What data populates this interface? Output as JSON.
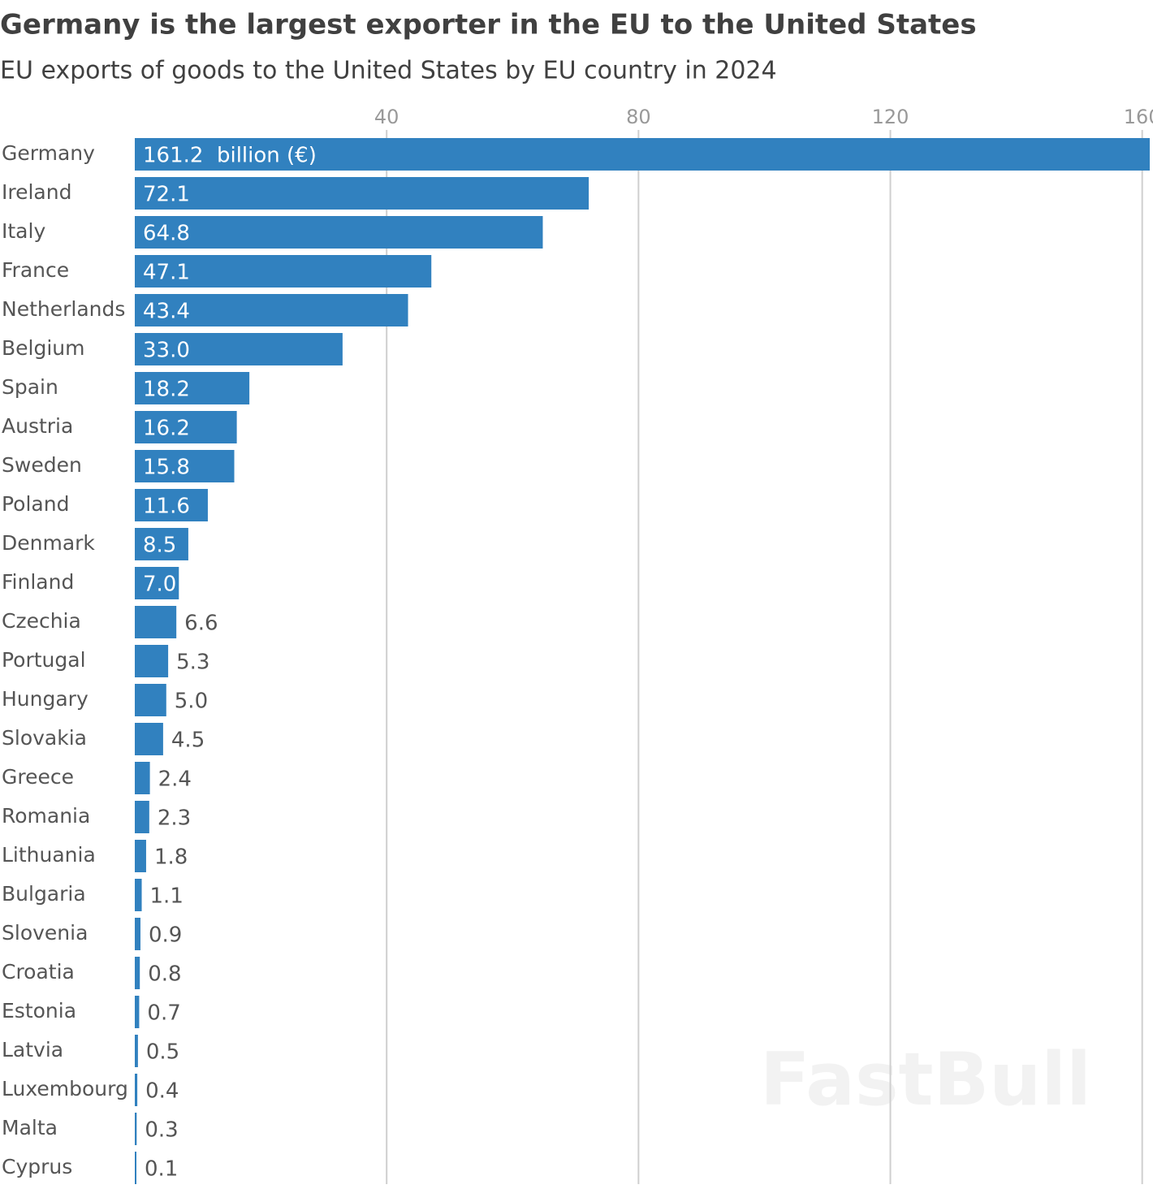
{
  "chart_data": {
    "type": "bar",
    "orientation": "horizontal",
    "title": "Germany is the largest exporter in the EU to the United States",
    "subtitle": "EU exports of goods to the United States by EU country in 2024",
    "categories": [
      "Germany",
      "Ireland",
      "Italy",
      "France",
      "Netherlands",
      "Belgium",
      "Spain",
      "Austria",
      "Sweden",
      "Poland",
      "Denmark",
      "Finland",
      "Czechia",
      "Portugal",
      "Hungary",
      "Slovakia",
      "Greece",
      "Romania",
      "Lithuania",
      "Bulgaria",
      "Slovenia",
      "Croatia",
      "Estonia",
      "Latvia",
      "Luxembourg",
      "Malta",
      "Cyprus"
    ],
    "values": [
      161.2,
      72.1,
      64.8,
      47.1,
      43.4,
      33.0,
      18.2,
      16.2,
      15.8,
      11.6,
      8.5,
      7.0,
      6.6,
      5.3,
      5.0,
      4.5,
      2.4,
      2.3,
      1.8,
      1.1,
      0.9,
      0.8,
      0.7,
      0.5,
      0.4,
      0.3,
      0.1
    ],
    "value_labels": [
      "161.2  billion (€)",
      "72.1",
      "64.8",
      "47.1",
      "43.4",
      "33.0",
      "18.2",
      "16.2",
      "15.8",
      "11.6",
      "8.5",
      "7.0",
      "6.6",
      "5.3",
      "5.0",
      "4.5",
      "2.4",
      "2.3",
      "1.8",
      "1.1",
      "0.9",
      "0.8",
      "0.7",
      "0.5",
      "0.4",
      "0.3",
      "0.1"
    ],
    "color": "#3181bf",
    "xlim": [
      0,
      161.2
    ],
    "xticks": [
      40,
      80,
      120,
      160
    ],
    "grid": true,
    "watermark": "FastBull"
  }
}
